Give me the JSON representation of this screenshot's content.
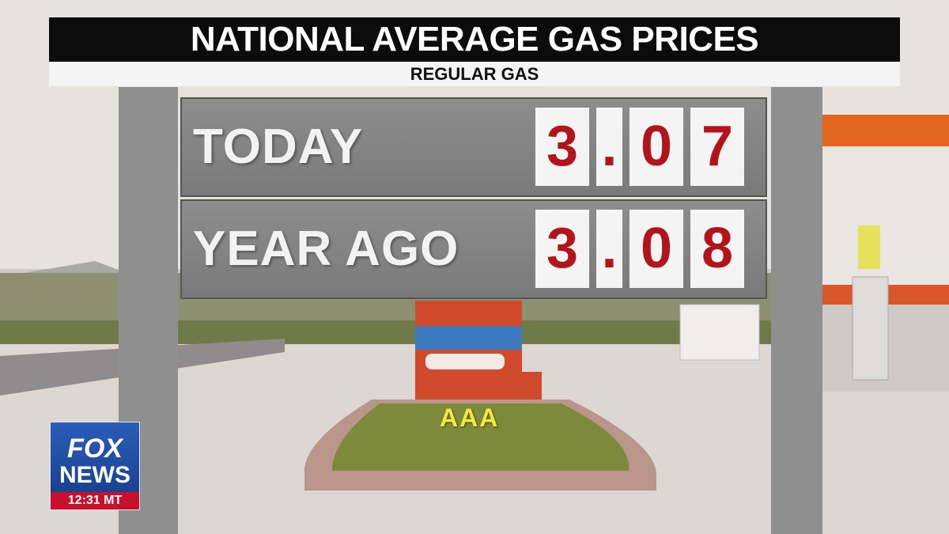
{
  "header": {
    "title": "NATIONAL AVERAGE GAS PRICES",
    "subtitle": "REGULAR GAS"
  },
  "rows": [
    {
      "label": "TODAY",
      "tiles": [
        "3",
        ".",
        "0",
        "7"
      ]
    },
    {
      "label": "YEAR AGO",
      "tiles": [
        "3",
        ".",
        "0",
        "8"
      ]
    }
  ],
  "source": "AAA",
  "logo": {
    "line1": "FOX",
    "line2": "NEWS",
    "time": "12:31 MT"
  }
}
